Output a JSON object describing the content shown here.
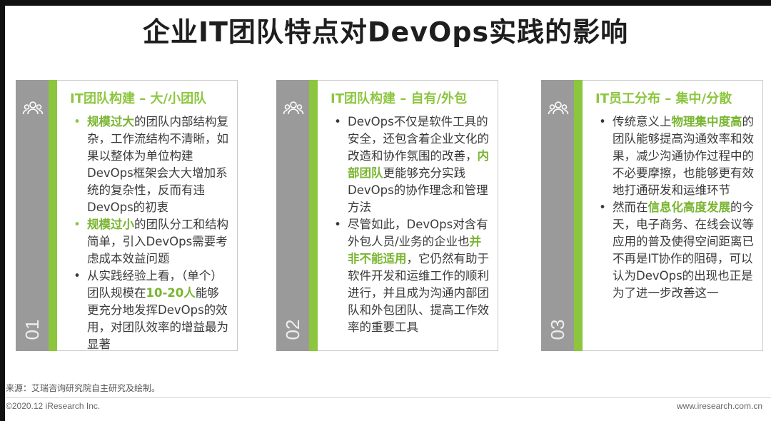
{
  "title": "企业IT团队特点对DevOps实践的影响",
  "colors": {
    "accent": "#8cc63f",
    "strip": "#9a9a9a"
  },
  "cards": [
    {
      "number": "01",
      "icon": "people-group-icon",
      "heading": "IT团队构建 – 大/小团队",
      "bullets": [
        {
          "parts": [
            {
              "text": "规模过大",
              "hl": true
            },
            {
              "text": "的团队内部结构复杂，工作流结构不清晰，如果以整体为单位构建DevOps框架会大大增加系统的复杂性，反而有违DevOps的初衷",
              "hl": false
            }
          ]
        },
        {
          "parts": [
            {
              "text": "规模过小",
              "hl": true
            },
            {
              "text": "的团队分工和结构简单，引入DevOps需要考虑成本效益问题",
              "hl": false
            }
          ]
        },
        {
          "parts": [
            {
              "text": "从实践经验上看，（单个）团队规模在",
              "hl": false
            },
            {
              "text": "10-20人",
              "hl": true
            },
            {
              "text": "能够更充分地发挥DevOps的效用，对团队效率的增益最为显著",
              "hl": false
            }
          ]
        }
      ]
    },
    {
      "number": "02",
      "icon": "people-group-icon",
      "heading": "IT团队构建 – 自有/外包",
      "bullets": [
        {
          "parts": [
            {
              "text": "DevOps不仅是软件工具的安全，还包含着企业文化的改造和协作氛围的改善，",
              "hl": false
            },
            {
              "text": "内部团队",
              "hl": true
            },
            {
              "text": "更能够充分实践DevOps的协作理念和管理方法",
              "hl": false
            }
          ]
        },
        {
          "parts": [
            {
              "text": "尽管如此，DevOps对含有外包人员/业务的企业也",
              "hl": false
            },
            {
              "text": "并非不能适用",
              "hl": true
            },
            {
              "text": "，它仍然有助于软件开发和运维工作的顺利进行，并且成为沟通内部团队和外包团队、提高工作效率的重要工具",
              "hl": false
            }
          ]
        }
      ]
    },
    {
      "number": "03",
      "icon": "people-group-icon",
      "heading": "IT员工分布 – 集中/分散",
      "bullets": [
        {
          "parts": [
            {
              "text": "传统意义上",
              "hl": false
            },
            {
              "text": "物理集中度高",
              "hl": true
            },
            {
              "text": "的团队能够提高沟通效率和效果，减少沟通协作过程中的不必要摩擦，也能够更有效地打通研发和运维环节",
              "hl": false
            }
          ]
        },
        {
          "parts": [
            {
              "text": "然而在",
              "hl": false
            },
            {
              "text": "信息化高度发展",
              "hl": true
            },
            {
              "text": "的今天，电子商务、在线会议等应用的普及使得空间距离已不再是IT协作的阻碍，可以认为DevOps的出现也正是为了进一步改善这一",
              "hl": false
            }
          ]
        }
      ]
    }
  ],
  "footer": {
    "source": "来源：艾瑞咨询研究院自主研究及绘制。",
    "copyright": "©2020.12 iResearch Inc.",
    "website": "www.iresearch.com.cn"
  }
}
